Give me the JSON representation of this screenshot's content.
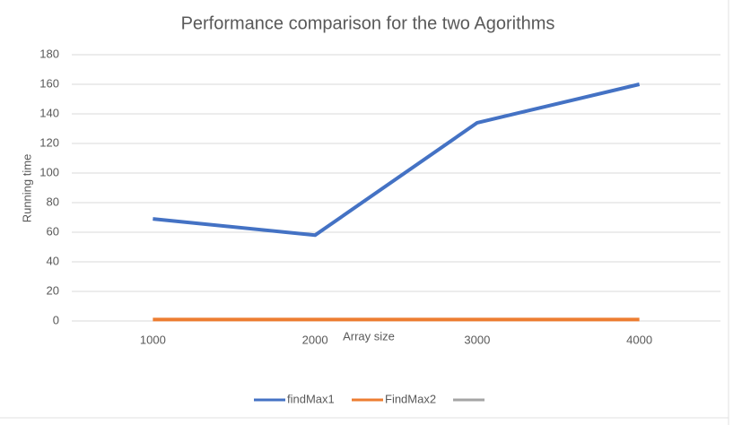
{
  "chart_data": {
    "type": "line",
    "title": "Performance comparison  for the two  Agorithms",
    "x_label": "Array size",
    "y_label": "Running time",
    "categories": [
      "1000",
      "2000",
      "3000",
      "4000"
    ],
    "series": [
      {
        "name": "findMax1",
        "color": "#4472c4",
        "values": [
          69,
          58,
          134,
          160
        ]
      },
      {
        "name": "FindMax2",
        "color": "#ed7d31",
        "values": [
          1,
          1,
          1,
          1
        ]
      }
    ],
    "ylim": [
      0,
      180
    ],
    "yticks": [
      0,
      20,
      40,
      60,
      80,
      100,
      120,
      140,
      160,
      180
    ],
    "grid": true
  }
}
